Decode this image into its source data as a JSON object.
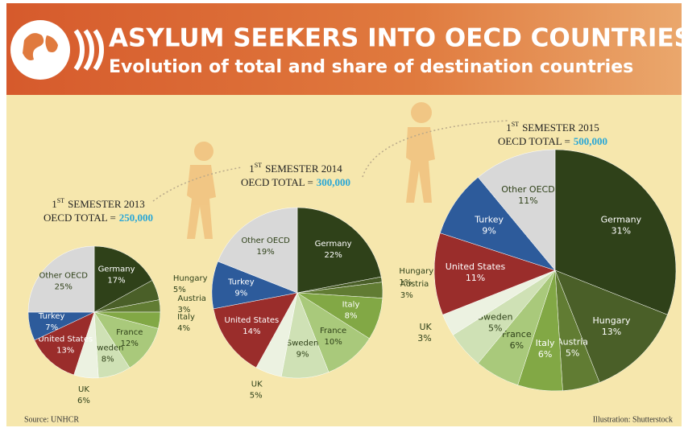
{
  "header": {
    "title": "ASYLUM SEEKERS INTO OECD COUNTRIES",
    "subtitle": "Evolution of total and share of destination countries"
  },
  "footer": {
    "source": "Source: UNHCR",
    "credit": "Illustration: Shutterstock"
  },
  "chart_data": [
    {
      "type": "pie",
      "period_number": "1",
      "period_suffix": "ST",
      "period": "SEMESTER 2013",
      "total_label": "OECD TOTAL =",
      "total": "250,000",
      "categories": [
        "Germany",
        "Hungary",
        "Austria",
        "Italy",
        "France",
        "Sweden",
        "UK",
        "United States",
        "Turkey",
        "Other OECD"
      ],
      "values": [
        17,
        5,
        3,
        4,
        12,
        8,
        6,
        13,
        7,
        25
      ],
      "value_labels": [
        "17%",
        "5%",
        "3%",
        "4%",
        "12%",
        "8%",
        "6%",
        "13%",
        "7%",
        "25%"
      ],
      "colors": [
        "#2f4119",
        "#4a5f28",
        "#617c33",
        "#82a845",
        "#a9c97b",
        "#cfe1b5",
        "#ecf2e1",
        "#9a2d2b",
        "#2d5b9b",
        "#d8d8d8"
      ]
    },
    {
      "type": "pie",
      "period_number": "1",
      "period_suffix": "ST",
      "period": "SEMESTER 2014",
      "total_label": "OECD TOTAL =",
      "total": "300,000",
      "categories": [
        "Germany",
        "Hungary",
        "Austria",
        "Italy",
        "France",
        "Sweden",
        "UK",
        "United States",
        "Turkey",
        "Other OECD"
      ],
      "values": [
        22,
        1,
        3,
        8,
        10,
        9,
        5,
        14,
        9,
        19
      ],
      "value_labels": [
        "22%",
        "1%",
        "3%",
        "8%",
        "10%",
        "9%",
        "5%",
        "14%",
        "9%",
        "19%"
      ],
      "colors": [
        "#2f4119",
        "#4a5f28",
        "#617c33",
        "#82a845",
        "#a9c97b",
        "#cfe1b5",
        "#ecf2e1",
        "#9a2d2b",
        "#2d5b9b",
        "#d8d8d8"
      ]
    },
    {
      "type": "pie",
      "period_number": "1",
      "period_suffix": "ST",
      "period": "SEMESTER 2015",
      "total_label": "OECD TOTAL =",
      "total": "500,000",
      "categories": [
        "Germany",
        "Hungary",
        "Austria",
        "Italy",
        "France",
        "Sweden",
        "UK",
        "United States",
        "Turkey",
        "Other OECD"
      ],
      "values": [
        31,
        13,
        5,
        6,
        6,
        5,
        3,
        11,
        9,
        11
      ],
      "value_labels": [
        "31%",
        "13%",
        "5%",
        "6%",
        "6%",
        "5%",
        "3%",
        "11%",
        "9%",
        "11%"
      ],
      "colors": [
        "#2f4119",
        "#4a5f28",
        "#617c33",
        "#82a845",
        "#a9c97b",
        "#cfe1b5",
        "#ecf2e1",
        "#9a2d2b",
        "#2d5b9b",
        "#d8d8d8"
      ]
    }
  ]
}
